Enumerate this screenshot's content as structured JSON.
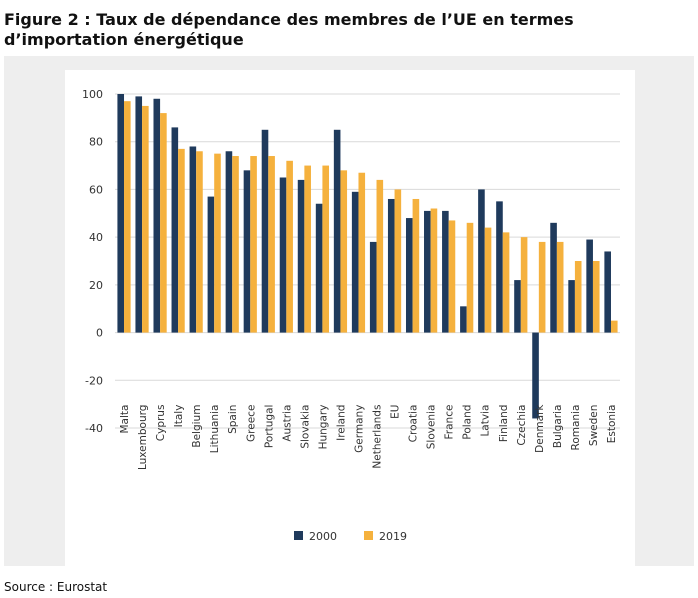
{
  "figure": {
    "title": "Figure 2 : Taux de dépendance des membres de l’UE en termes d’importation énergétique",
    "source": "Source : Eurostat"
  },
  "colors": {
    "series_2000": "#1f3a5c",
    "series_2019": "#f5b13d",
    "grid": "#d9d9d9",
    "text": "#333333",
    "panel": "#eeeeee"
  },
  "chart_data": {
    "type": "bar",
    "title": "",
    "xlabel": "",
    "ylabel": "",
    "ylim": [
      -40,
      100
    ],
    "yticks": [
      -40,
      -20,
      0,
      20,
      40,
      60,
      80,
      100
    ],
    "grid": true,
    "legend_position": "bottom-center",
    "categories": [
      "Malta",
      "Luxembourg",
      "Cyprus",
      "Italy",
      "Belgium",
      "Lithuania",
      "Spain",
      "Greece",
      "Portugal",
      "Austria",
      "Slovakia",
      "Hungary",
      "Ireland",
      "Germany",
      "Netherlands",
      "EU",
      "Croatia",
      "Slovenia",
      "France",
      "Poland",
      "Latvia",
      "Finland",
      "Czechia",
      "Denmark",
      "Bulgaria",
      "Romania",
      "Sweden",
      "Estonia"
    ],
    "series": [
      {
        "name": "2000",
        "values": [
          100,
          99,
          98,
          86,
          78,
          57,
          76,
          68,
          85,
          65,
          64,
          54,
          85,
          59,
          38,
          56,
          48,
          51,
          51,
          11,
          60,
          55,
          22,
          -36,
          46,
          22,
          39,
          34
        ]
      },
      {
        "name": "2019",
        "values": [
          97,
          95,
          92,
          77,
          76,
          75,
          74,
          74,
          74,
          72,
          70,
          70,
          68,
          67,
          64,
          60,
          56,
          52,
          47,
          46,
          44,
          42,
          40,
          38,
          38,
          30,
          30,
          5
        ]
      }
    ]
  }
}
